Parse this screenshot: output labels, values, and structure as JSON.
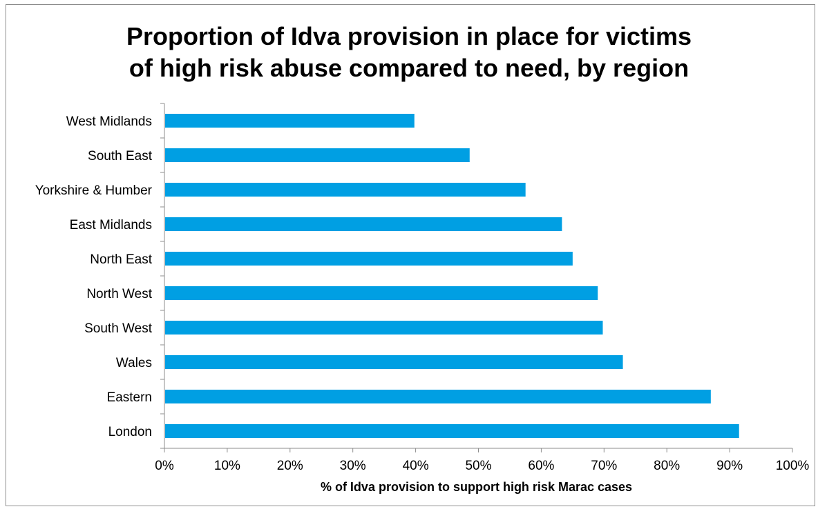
{
  "chart_data": {
    "type": "bar",
    "orientation": "horizontal",
    "title": "Proportion of Idva provision in place for victims of high risk abuse compared to need, by region",
    "title_lines": [
      "Proportion of Idva provision in place for victims",
      "of high risk abuse compared to need, by region"
    ],
    "categories": [
      "West Midlands",
      "South East",
      "Yorkshire & Humber",
      "East Midlands",
      "North East",
      "North West",
      "South West",
      "Wales",
      "Eastern",
      "London"
    ],
    "values": [
      39.8,
      48.6,
      57.5,
      63.3,
      65.0,
      69.0,
      69.8,
      73.0,
      87.0,
      91.5
    ],
    "xlabel": "% of Idva provision to support high risk Marac cases",
    "ylabel": "",
    "xlim": [
      0,
      100
    ],
    "x_ticks": [
      "0%",
      "10%",
      "20%",
      "30%",
      "40%",
      "50%",
      "60%",
      "70%",
      "80%",
      "90%",
      "100%"
    ],
    "x_tick_values": [
      0,
      10,
      20,
      30,
      40,
      50,
      60,
      70,
      80,
      90,
      100
    ],
    "grid": false,
    "legend": "none",
    "bar_color": "#009fe3",
    "axis_color": "#8c8c8c"
  }
}
